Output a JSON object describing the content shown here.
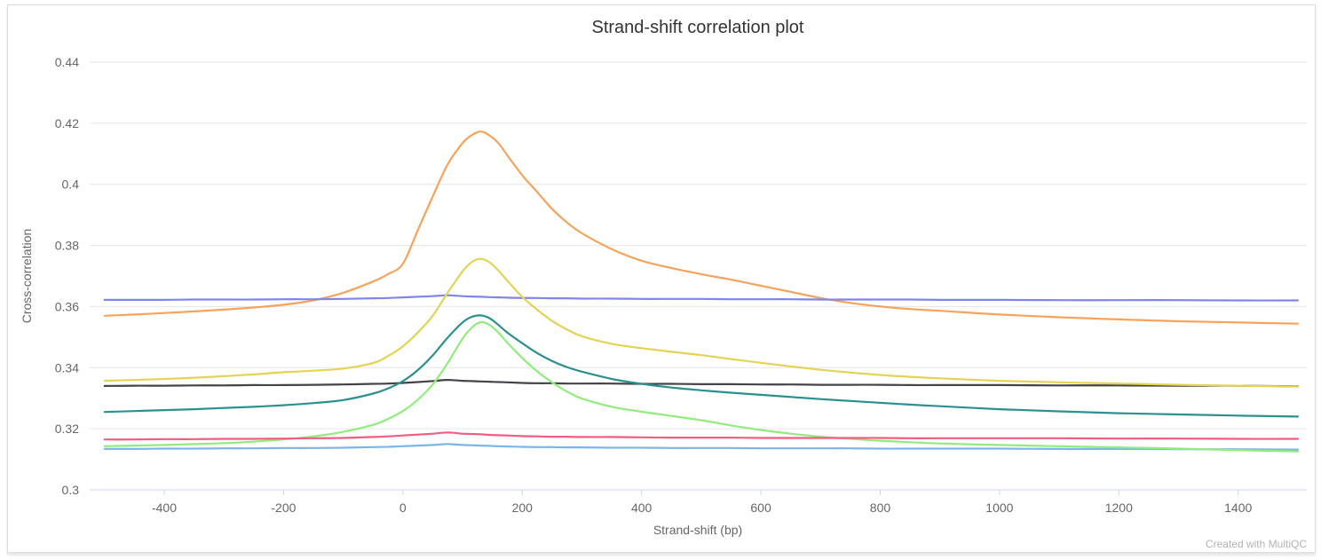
{
  "page": {
    "card_background": "#ffffff",
    "card_border": "#dcdcdc"
  },
  "footer": {
    "credit": "Created with MultiQC"
  },
  "chart_data": {
    "type": "line",
    "title": "Strand-shift correlation plot",
    "xlabel": "Strand-shift (bp)",
    "ylabel": "Cross-correlation",
    "xlim": [
      -525,
      1515
    ],
    "ylim": [
      0.3,
      0.44
    ],
    "x_ticks": [
      -400,
      -200,
      0,
      200,
      400,
      600,
      800,
      1000,
      1200,
      1400
    ],
    "y_ticks": [
      0.3,
      0.32,
      0.34,
      0.36,
      0.38,
      0.4,
      0.42,
      0.44
    ],
    "grid": "horizontal-only",
    "legend_position": "none",
    "style": {
      "grid_color": "#e6e6e6",
      "axis_line_color": "#ccd6eb",
      "tick_label_color": "#666666",
      "title_color": "#333333",
      "credit_color": "#b3b3b3",
      "line_width": 2.2
    },
    "x": [
      -500,
      -450,
      -400,
      -350,
      -300,
      -250,
      -200,
      -150,
      -100,
      -50,
      -25,
      0,
      25,
      50,
      75,
      100,
      115,
      130,
      145,
      160,
      175,
      200,
      225,
      250,
      275,
      300,
      350,
      400,
      450,
      500,
      550,
      600,
      650,
      700,
      750,
      800,
      850,
      900,
      1000,
      1100,
      1200,
      1300,
      1400,
      1500
    ],
    "series": [
      {
        "name": "light-blue-flat",
        "color": "#7cb5ec",
        "values": [
          0.3134,
          0.3134,
          0.3135,
          0.3135,
          0.3136,
          0.3136,
          0.3137,
          0.3137,
          0.3138,
          0.314,
          0.3141,
          0.3143,
          0.3145,
          0.3147,
          0.315,
          0.3147,
          0.3146,
          0.3145,
          0.3144,
          0.3143,
          0.3142,
          0.3141,
          0.314,
          0.314,
          0.3139,
          0.3139,
          0.3138,
          0.3138,
          0.3137,
          0.3137,
          0.3137,
          0.3136,
          0.3136,
          0.3136,
          0.3136,
          0.3135,
          0.3135,
          0.3135,
          0.3135,
          0.3134,
          0.3134,
          0.3133,
          0.3133,
          0.3132
        ]
      },
      {
        "name": "dark-gray-flat",
        "color": "#434348",
        "values": [
          0.334,
          0.3341,
          0.3341,
          0.3342,
          0.3342,
          0.3343,
          0.3343,
          0.3344,
          0.3345,
          0.3347,
          0.3348,
          0.335,
          0.3353,
          0.3356,
          0.336,
          0.3357,
          0.3356,
          0.3355,
          0.3354,
          0.3353,
          0.3352,
          0.335,
          0.3349,
          0.3349,
          0.3348,
          0.3348,
          0.3348,
          0.3347,
          0.3347,
          0.3346,
          0.3346,
          0.3345,
          0.3345,
          0.3344,
          0.3344,
          0.3344,
          0.3343,
          0.3343,
          0.3343,
          0.3342,
          0.3342,
          0.3341,
          0.3341,
          0.3339
        ]
      },
      {
        "name": "light-green-peaked",
        "color": "#90ed7d",
        "values": [
          0.3143,
          0.3145,
          0.3147,
          0.315,
          0.3153,
          0.3158,
          0.3165,
          0.3175,
          0.319,
          0.3213,
          0.3232,
          0.3258,
          0.3295,
          0.3345,
          0.3415,
          0.3495,
          0.353,
          0.3549,
          0.354,
          0.3515,
          0.3482,
          0.3432,
          0.3388,
          0.3352,
          0.3322,
          0.3299,
          0.3272,
          0.3256,
          0.3242,
          0.3228,
          0.3211,
          0.3196,
          0.3184,
          0.3174,
          0.3167,
          0.3161,
          0.3156,
          0.3152,
          0.3147,
          0.3143,
          0.3139,
          0.3135,
          0.313,
          0.3126
        ]
      },
      {
        "name": "orange-peaked",
        "color": "#f7a35c",
        "values": [
          0.357,
          0.3574,
          0.3579,
          0.3584,
          0.359,
          0.3597,
          0.3606,
          0.362,
          0.3645,
          0.3682,
          0.3706,
          0.374,
          0.385,
          0.396,
          0.4065,
          0.4135,
          0.416,
          0.4173,
          0.416,
          0.4135,
          0.4095,
          0.403,
          0.3975,
          0.392,
          0.3875,
          0.384,
          0.3788,
          0.375,
          0.3726,
          0.3706,
          0.3688,
          0.3668,
          0.3648,
          0.3628,
          0.3612,
          0.36,
          0.3592,
          0.3586,
          0.3574,
          0.3565,
          0.3558,
          0.3552,
          0.3548,
          0.3544
        ]
      },
      {
        "name": "purple-flat",
        "color": "#8085e9",
        "values": [
          0.3622,
          0.3622,
          0.3622,
          0.3623,
          0.3623,
          0.3623,
          0.3624,
          0.3624,
          0.3625,
          0.3627,
          0.3628,
          0.363,
          0.3632,
          0.3634,
          0.3637,
          0.3634,
          0.3633,
          0.3632,
          0.3631,
          0.363,
          0.3629,
          0.3628,
          0.3628,
          0.3627,
          0.3627,
          0.3626,
          0.3626,
          0.3625,
          0.3625,
          0.3625,
          0.3624,
          0.3624,
          0.3624,
          0.3623,
          0.3623,
          0.3623,
          0.3623,
          0.3622,
          0.3622,
          0.3621,
          0.3621,
          0.3621,
          0.362,
          0.362
        ]
      },
      {
        "name": "pink-flat",
        "color": "#f15c80",
        "values": [
          0.3165,
          0.3165,
          0.3166,
          0.3166,
          0.3167,
          0.3167,
          0.3168,
          0.3169,
          0.317,
          0.3173,
          0.3175,
          0.3178,
          0.3181,
          0.3184,
          0.3188,
          0.3184,
          0.3183,
          0.3182,
          0.318,
          0.3179,
          0.3178,
          0.3176,
          0.3175,
          0.3174,
          0.3174,
          0.3173,
          0.3173,
          0.3172,
          0.3171,
          0.3171,
          0.3171,
          0.317,
          0.317,
          0.317,
          0.317,
          0.317,
          0.3169,
          0.3169,
          0.3169,
          0.3169,
          0.3168,
          0.3168,
          0.3167,
          0.3167
        ]
      },
      {
        "name": "yellow-peaked",
        "color": "#e4d354",
        "values": [
          0.3357,
          0.336,
          0.3363,
          0.3367,
          0.3372,
          0.3378,
          0.3385,
          0.339,
          0.3397,
          0.3415,
          0.3438,
          0.347,
          0.3515,
          0.357,
          0.3645,
          0.3715,
          0.3745,
          0.3756,
          0.3745,
          0.3718,
          0.3685,
          0.3632,
          0.359,
          0.3553,
          0.3525,
          0.3503,
          0.3478,
          0.3464,
          0.3452,
          0.3441,
          0.3428,
          0.3416,
          0.3404,
          0.3393,
          0.3384,
          0.3376,
          0.337,
          0.3365,
          0.3357,
          0.3352,
          0.3348,
          0.3344,
          0.3341,
          0.3338
        ]
      },
      {
        "name": "teal-peaked",
        "color": "#2b908f",
        "values": [
          0.3255,
          0.3258,
          0.3261,
          0.3264,
          0.3268,
          0.3272,
          0.3277,
          0.3284,
          0.3294,
          0.3315,
          0.3332,
          0.3356,
          0.3392,
          0.344,
          0.3498,
          0.3548,
          0.3566,
          0.3571,
          0.3562,
          0.354,
          0.3515,
          0.348,
          0.3448,
          0.3422,
          0.3402,
          0.3387,
          0.3363,
          0.3347,
          0.3335,
          0.3326,
          0.3318,
          0.3311,
          0.3304,
          0.3297,
          0.3291,
          0.3285,
          0.3279,
          0.3274,
          0.3264,
          0.3257,
          0.3251,
          0.3247,
          0.3243,
          0.324
        ]
      }
    ]
  }
}
